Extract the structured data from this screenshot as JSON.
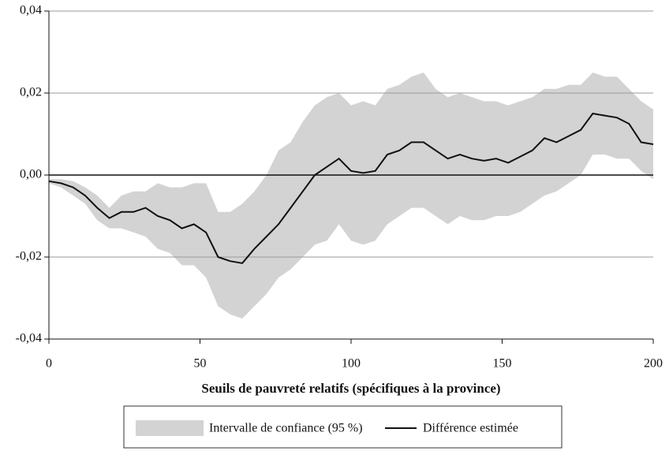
{
  "chart_data": {
    "type": "line",
    "xlabel": "Seuils de pauvreté relatifs (spécifiques à la province)",
    "x": [
      0,
      4,
      8,
      12,
      16,
      20,
      24,
      28,
      32,
      36,
      40,
      44,
      48,
      52,
      56,
      60,
      64,
      68,
      72,
      76,
      80,
      84,
      88,
      92,
      96,
      100,
      104,
      108,
      112,
      116,
      120,
      124,
      128,
      132,
      136,
      140,
      144,
      148,
      152,
      156,
      160,
      164,
      168,
      172,
      176,
      180,
      184,
      188,
      192,
      196,
      200
    ],
    "series": [
      {
        "name": "Intervalle de confiance (95 %)",
        "color": "#d3d3d3",
        "upper": [
          -0.001,
          -0.001,
          -0.0015,
          -0.003,
          -0.005,
          -0.008,
          -0.005,
          -0.004,
          -0.004,
          -0.002,
          -0.003,
          -0.003,
          -0.002,
          -0.002,
          -0.009,
          -0.009,
          -0.007,
          -0.004,
          0.0,
          0.006,
          0.008,
          0.013,
          0.017,
          0.019,
          0.02,
          0.017,
          0.018,
          0.017,
          0.021,
          0.022,
          0.024,
          0.025,
          0.021,
          0.019,
          0.02,
          0.019,
          0.018,
          0.018,
          0.017,
          0.018,
          0.019,
          0.021,
          0.021,
          0.022,
          0.022,
          0.025,
          0.024,
          0.024,
          0.021,
          0.018,
          0.016
        ],
        "lower": [
          -0.002,
          -0.003,
          -0.005,
          -0.007,
          -0.011,
          -0.013,
          -0.013,
          -0.014,
          -0.015,
          -0.018,
          -0.019,
          -0.022,
          -0.022,
          -0.025,
          -0.032,
          -0.034,
          -0.035,
          -0.032,
          -0.029,
          -0.025,
          -0.023,
          -0.02,
          -0.017,
          -0.016,
          -0.012,
          -0.016,
          -0.017,
          -0.016,
          -0.012,
          -0.01,
          -0.008,
          -0.008,
          -0.01,
          -0.012,
          -0.01,
          -0.011,
          -0.011,
          -0.01,
          -0.01,
          -0.009,
          -0.007,
          -0.005,
          -0.004,
          -0.002,
          0.0,
          0.005,
          0.005,
          0.004,
          0.004,
          0.001,
          -0.001
        ]
      },
      {
        "name": "Différence estimée",
        "color": "#111111",
        "values": [
          -0.0015,
          -0.002,
          -0.003,
          -0.005,
          -0.008,
          -0.0105,
          -0.009,
          -0.009,
          -0.008,
          -0.01,
          -0.011,
          -0.013,
          -0.012,
          -0.014,
          -0.02,
          -0.021,
          -0.0215,
          -0.018,
          -0.015,
          -0.012,
          -0.008,
          -0.004,
          0.0,
          0.002,
          0.004,
          0.001,
          0.0005,
          0.001,
          0.005,
          0.006,
          0.008,
          0.008,
          0.006,
          0.004,
          0.005,
          0.004,
          0.0035,
          0.004,
          0.003,
          0.0045,
          0.006,
          0.009,
          0.008,
          0.0095,
          0.011,
          0.015,
          0.0145,
          0.014,
          0.0125,
          0.008,
          0.0075
        ]
      }
    ],
    "xlim": [
      0,
      200
    ],
    "xticks": [
      0,
      50,
      100,
      150,
      200
    ],
    "ylim": [
      -0.04,
      0.04
    ],
    "yticks": [
      {
        "value": -0.04,
        "label": "-0,04"
      },
      {
        "value": -0.02,
        "label": "-0,02"
      },
      {
        "value": 0,
        "label": "0,00"
      },
      {
        "value": 0.02,
        "label": "0,02"
      },
      {
        "value": 0.04,
        "label": "0,04"
      }
    ],
    "grid": true,
    "legend": "bottom"
  }
}
